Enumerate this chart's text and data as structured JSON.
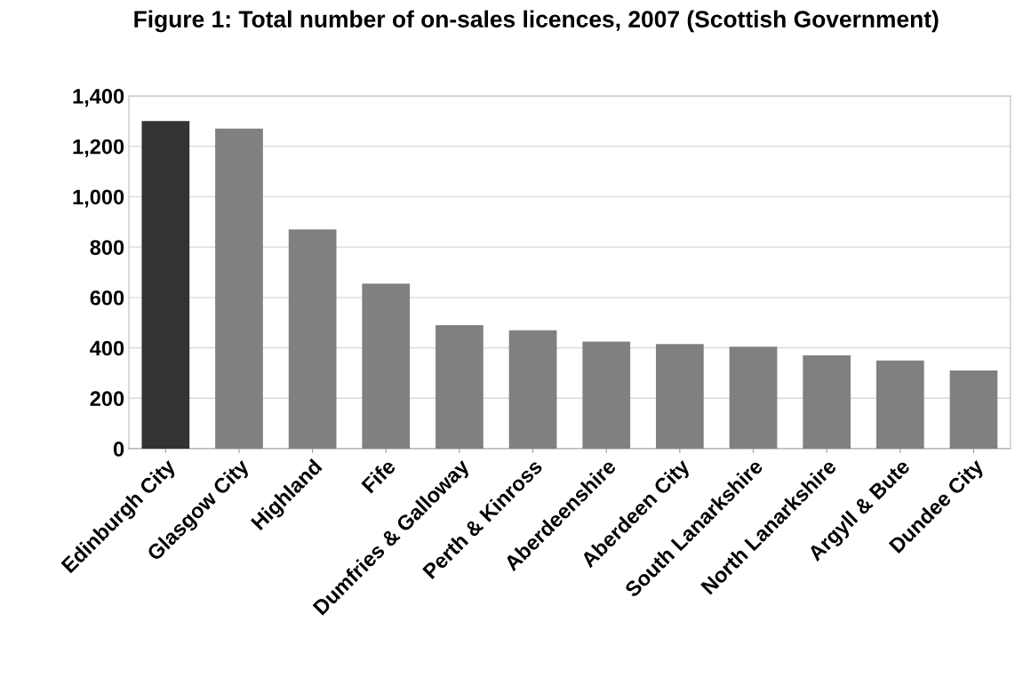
{
  "chart_data": {
    "type": "bar",
    "title": "Figure 1: Total number of on-sales licences, 2007 (Scottish Government)",
    "categories": [
      "Edinburgh City",
      "Glasgow City",
      "Highland",
      "Fife",
      "Dumfries & Galloway",
      "Perth & Kinross",
      "Aberdeenshire",
      "Aberdeen City",
      "South Lanarkshire",
      "North Lanarkshire",
      "Argyll & Bute",
      "Dundee City"
    ],
    "values": [
      1300,
      1270,
      870,
      655,
      490,
      470,
      425,
      415,
      405,
      370,
      350,
      310
    ],
    "colors": [
      "#333333",
      "#808080",
      "#808080",
      "#808080",
      "#808080",
      "#808080",
      "#808080",
      "#808080",
      "#808080",
      "#808080",
      "#808080",
      "#808080"
    ],
    "ylim": [
      0,
      1400
    ],
    "yticks": [
      0,
      {
        "value": 200,
        "label": "200"
      },
      {
        "value": 400,
        "label": "400"
      },
      {
        "value": 600,
        "label": "600"
      },
      {
        "value": 800,
        "label": "800"
      },
      {
        "value": 1000,
        "label": "1,000"
      },
      {
        "value": 1200,
        "label": "1,200"
      },
      {
        "value": 1400,
        "label": "1,400"
      }
    ],
    "grid": "y"
  }
}
